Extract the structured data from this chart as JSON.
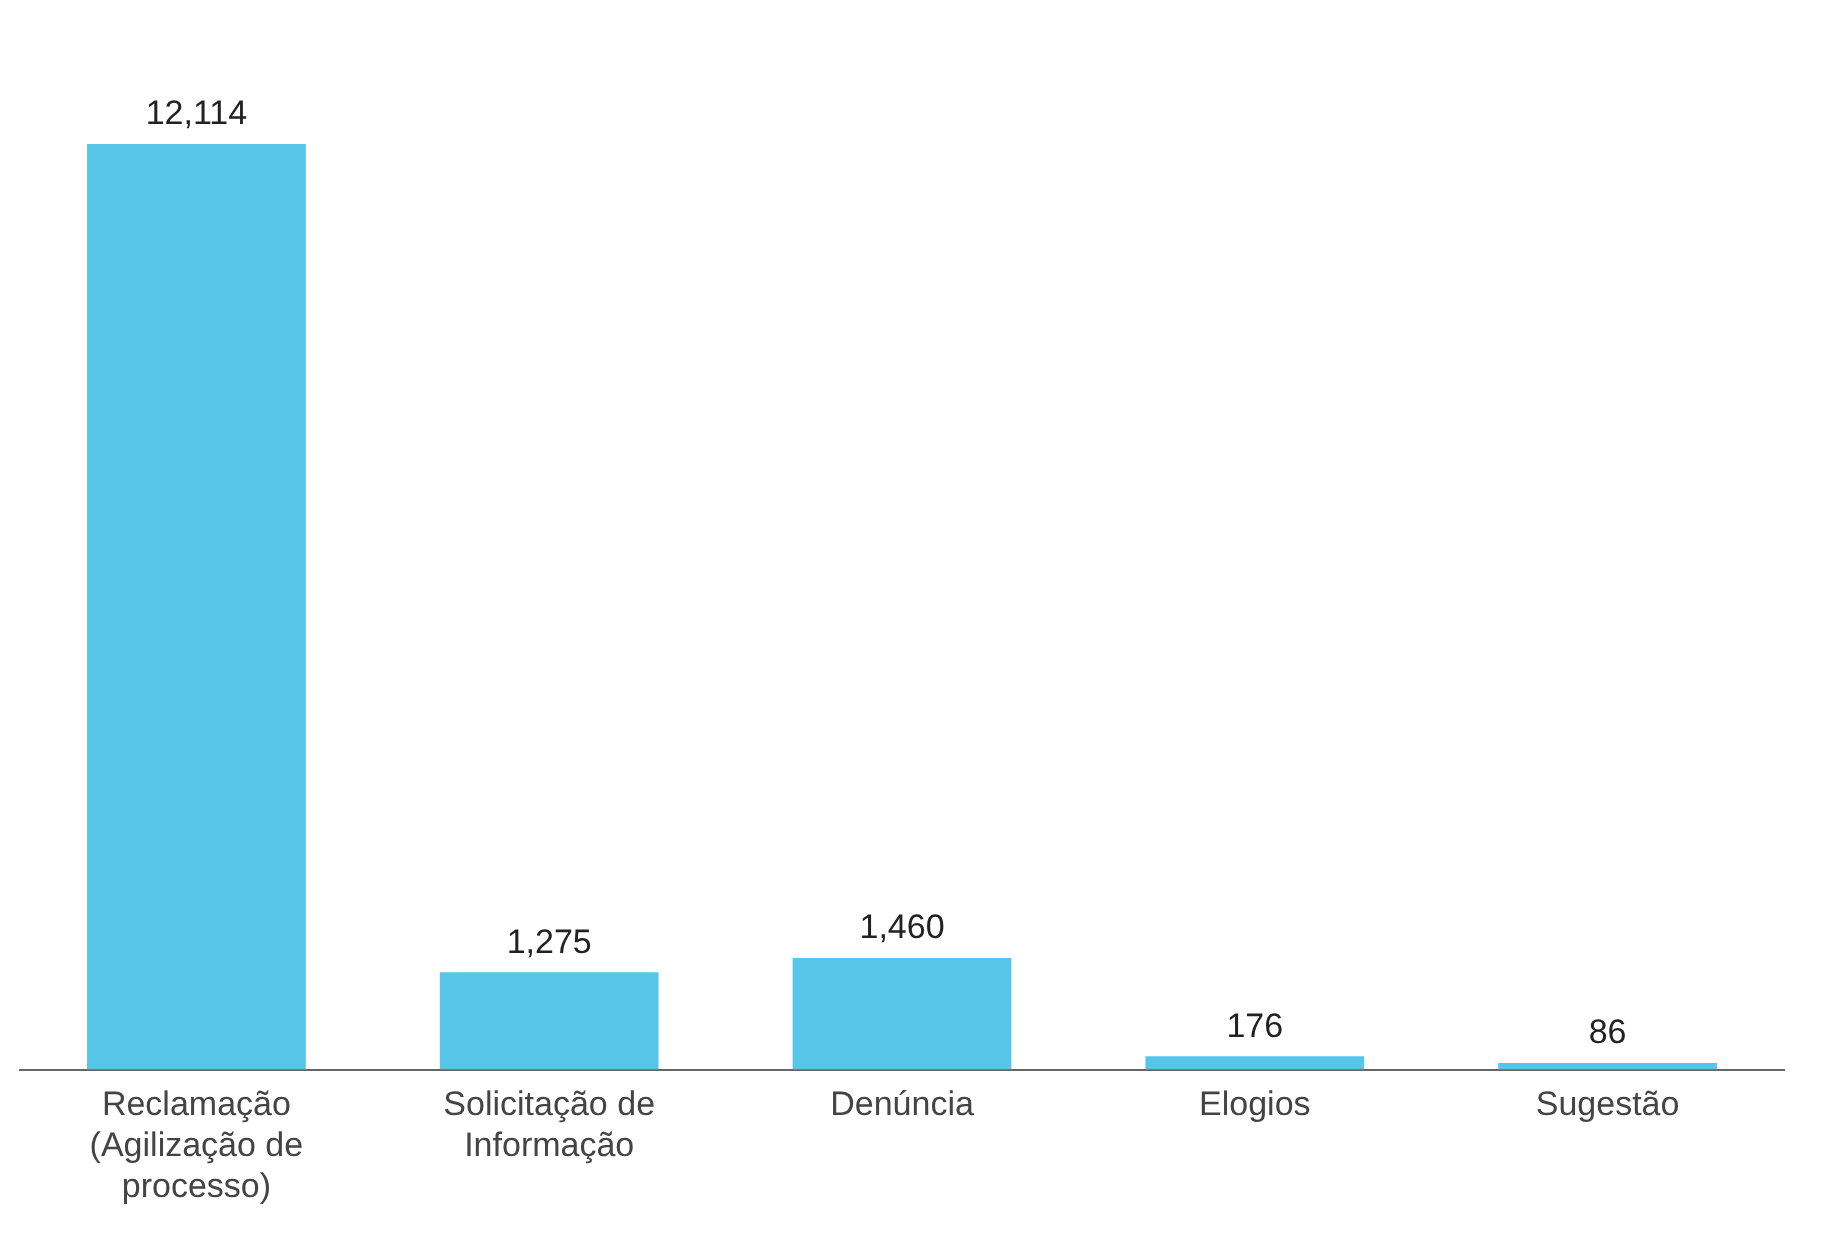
{
  "chart_data": {
    "type": "bar",
    "categories": [
      "Reclamação (Agilização de processo)",
      "Solicitação de Informação",
      "Denúncia",
      "Elogios",
      "Sugestão"
    ],
    "values": [
      12114,
      1275,
      1460,
      176,
      86
    ],
    "value_labels": [
      "12,114",
      "1,275",
      "1,460",
      "176",
      "86"
    ],
    "color": "#56c5e8",
    "grid": false,
    "legend": false
  }
}
